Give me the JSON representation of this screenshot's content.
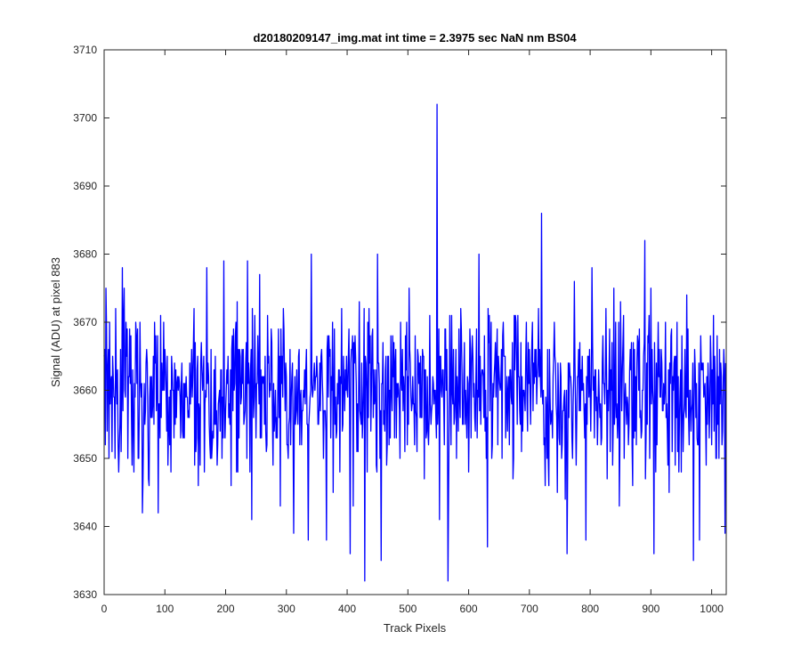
{
  "chart_data": {
    "type": "line",
    "title": "d20180209147_img.mat int time = 2.3975 sec  NaN nm BS04",
    "xlabel": "Track Pixels",
    "ylabel": "Signal (ADU) at pixel 883",
    "xlim": [
      0,
      1024
    ],
    "ylim": [
      3630,
      3710
    ],
    "xticks": [
      0,
      100,
      200,
      300,
      400,
      500,
      600,
      700,
      800,
      900,
      1000
    ],
    "yticks": [
      3630,
      3640,
      3650,
      3660,
      3670,
      3680,
      3690,
      3700,
      3710
    ],
    "grid": false,
    "legend": "none",
    "line_color": "#0000ff",
    "noise": {
      "count": 1024,
      "baseline": 3660,
      "spread": 6,
      "seed": 147,
      "min": 3632,
      "max": 3702
    },
    "series": [
      {
        "points": [
          {
            "x": 0,
            "y": 3665
          },
          {
            "x": 3,
            "y": 3675
          },
          {
            "x": 18,
            "y": 3650
          },
          {
            "x": 30,
            "y": 3678
          },
          {
            "x": 33,
            "y": 3675
          },
          {
            "x": 63,
            "y": 3642
          },
          {
            "x": 74,
            "y": 3646
          },
          {
            "x": 89,
            "y": 3642
          },
          {
            "x": 100,
            "y": 3666
          },
          {
            "x": 155,
            "y": 3646
          },
          {
            "x": 197,
            "y": 3679
          },
          {
            "x": 243,
            "y": 3641
          },
          {
            "x": 290,
            "y": 3643
          },
          {
            "x": 312,
            "y": 3639
          },
          {
            "x": 336,
            "y": 3638
          },
          {
            "x": 341,
            "y": 3680
          },
          {
            "x": 366,
            "y": 3638
          },
          {
            "x": 405,
            "y": 3636
          },
          {
            "x": 429,
            "y": 3632
          },
          {
            "x": 450,
            "y": 3680
          },
          {
            "x": 456,
            "y": 3635
          },
          {
            "x": 520,
            "y": 3656
          },
          {
            "x": 548,
            "y": 3702
          },
          {
            "x": 552,
            "y": 3641
          },
          {
            "x": 566,
            "y": 3632
          },
          {
            "x": 580,
            "y": 3650
          },
          {
            "x": 617,
            "y": 3680
          },
          {
            "x": 631,
            "y": 3637
          },
          {
            "x": 720,
            "y": 3686
          },
          {
            "x": 762,
            "y": 3636
          },
          {
            "x": 793,
            "y": 3638
          },
          {
            "x": 848,
            "y": 3643
          },
          {
            "x": 890,
            "y": 3682
          },
          {
            "x": 905,
            "y": 3636
          },
          {
            "x": 970,
            "y": 3635
          },
          {
            "x": 980,
            "y": 3638
          },
          {
            "x": 1020,
            "y": 3666
          },
          {
            "x": 1022,
            "y": 3639
          }
        ]
      }
    ]
  }
}
